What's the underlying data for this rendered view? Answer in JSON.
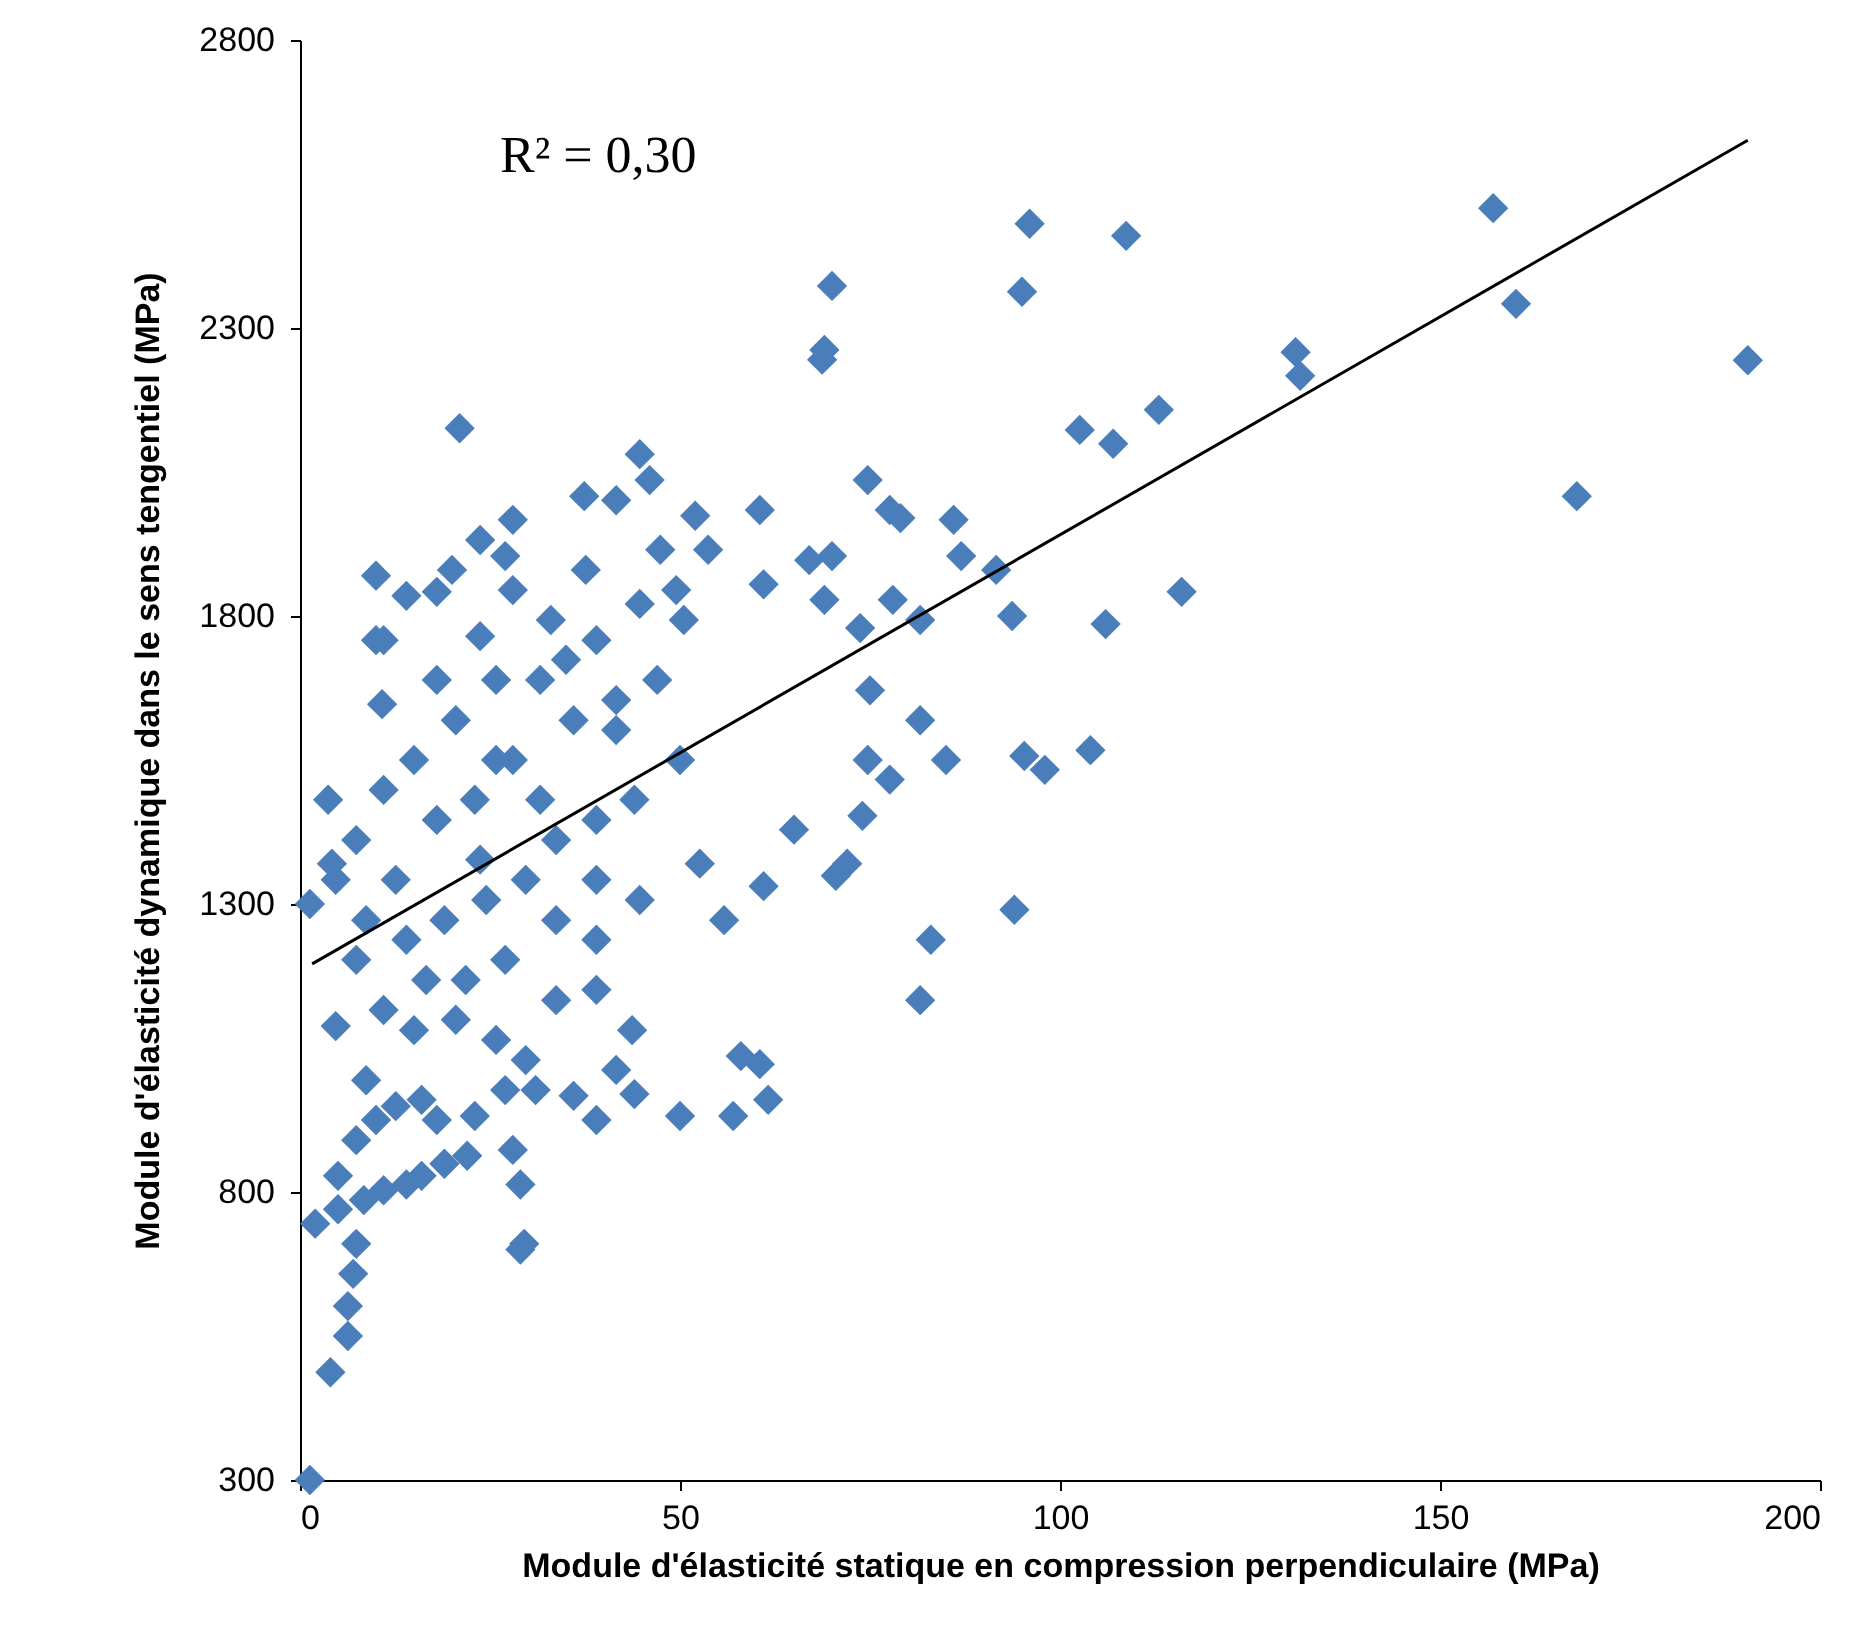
{
  "chart_data": {
    "type": "scatter",
    "xlabel": "Module d'élasticité statique en compression perpendiculaire (MPa)",
    "ylabel": "Module d'élasticité dynamique dans le sens tengentiel (MPa)",
    "annotations": [
      "R² = 0,30"
    ],
    "xlim": [
      0,
      200
    ],
    "ylim": [
      300,
      2800
    ],
    "xticks": [
      0,
      50,
      100,
      150,
      200
    ],
    "yticks": [
      300,
      800,
      1300,
      1800,
      2300,
      2800
    ],
    "grid": false,
    "marker": "diamond",
    "series": [
      {
        "color": "#4a7ebb",
        "x": [
          1.3,
          4,
          6.3,
          6.3,
          7,
          7.4,
          2,
          5,
          8.4,
          11,
          14,
          16,
          22,
          19,
          29,
          29.5,
          29,
          28,
          5,
          7.4,
          10,
          12.6,
          8.7,
          16,
          18,
          23,
          27,
          31,
          36,
          39,
          44,
          41.6,
          29.7,
          25.8,
          20.5,
          15,
          11,
          4.7,
          33.7,
          39,
          43.7,
          50,
          57,
          61.6,
          58,
          60.5,
          81.6,
          83,
          81.6,
          74.7,
          77.6,
          85,
          95.3,
          98,
          104,
          94,
          70.5,
          72,
          65,
          61,
          55.8,
          44.7,
          52.6,
          74,
          75,
          73.7,
          78,
          81.6,
          86,
          87,
          91.6,
          93.7,
          70,
          67,
          69,
          60.5,
          61,
          74.7,
          77.6,
          79,
          70,
          69,
          68.7,
          96,
          95,
          108.7,
          102.6,
          107,
          113,
          131,
          131.6,
          116,
          106,
          157,
          160,
          168,
          190.5,
          21,
          44.7,
          46,
          37.4,
          41.6,
          52,
          53.7,
          47.4,
          49.5,
          50.5,
          27,
          20,
          10,
          3.7,
          1.3,
          4.2,
          7.4,
          10.8,
          11,
          10,
          14,
          18,
          23.7,
          28,
          33,
          37.6,
          31.6,
          25.8,
          20.5,
          15,
          11,
          18,
          23,
          28,
          36,
          41.6,
          47,
          39,
          44.7,
          33.7,
          39,
          44,
          50,
          29.7,
          24.5,
          19,
          14,
          8.7,
          33.7,
          39,
          27,
          21.8,
          39,
          16.6,
          7.4,
          41.6,
          25.8,
          31.6,
          18,
          35,
          23.7,
          28,
          12.6,
          23.7,
          4.7
        ],
        "values": [
          300,
          487,
          550,
          602,
          658,
          710,
          745,
          770,
          786,
          803,
          813,
          828,
          863,
          849,
          813,
          710,
          700,
          873,
          828,
          890,
          925,
          949,
          994,
          960,
          925,
          932,
          977,
          977,
          967,
          925,
          970,
          1012,
          1029,
          1064,
          1099,
          1081,
          1116,
          1088,
          1133,
          1151,
          1081,
          932,
          932,
          960,
          1036,
          1022,
          1133,
          1238,
          1619,
          1550,
          1516,
          1550,
          1557,
          1533,
          1567,
          1290,
          1349,
          1370,
          1429,
          1331,
          1272,
          1307,
          1370,
          1453,
          1671,
          1779,
          1828,
          1793,
          1967,
          1904,
          1880,
          1800,
          1904,
          1897,
          1828,
          1984,
          1855,
          2036,
          1984,
          1970,
          2373,
          2262,
          2245,
          2481,
          2363,
          2460,
          2123,
          2099,
          2158,
          2258,
          2217,
          1842,
          1786,
          2508,
          2342,
          2008,
          2244,
          2126,
          2081,
          2036,
          2008,
          2001,
          1974,
          1915,
          1915,
          1845,
          1793,
          1904,
          1880,
          1870,
          1481,
          1300,
          1370,
          1411,
          1647,
          1758,
          1758,
          1835,
          1842,
          1765,
          1845,
          1793,
          1880,
          1689,
          1689,
          1619,
          1550,
          1498,
          1446,
          1481,
          1550,
          1619,
          1654,
          1689,
          1758,
          1821,
          1411,
          1446,
          1481,
          1550,
          1342,
          1307,
          1272,
          1238,
          1272,
          1272,
          1342,
          1203,
          1168,
          1238,
          1168,
          1203,
          1602,
          1550,
          1481,
          1689,
          1724,
          1932,
          1967,
          1342,
          1377,
          1342
        ]
      },
      {
        "type": "line",
        "color": "#000000",
        "line_style": "solid",
        "marker": "none",
        "x": [
          1.6,
          190.5
        ],
        "values": [
          1196,
          2626
        ]
      }
    ]
  }
}
